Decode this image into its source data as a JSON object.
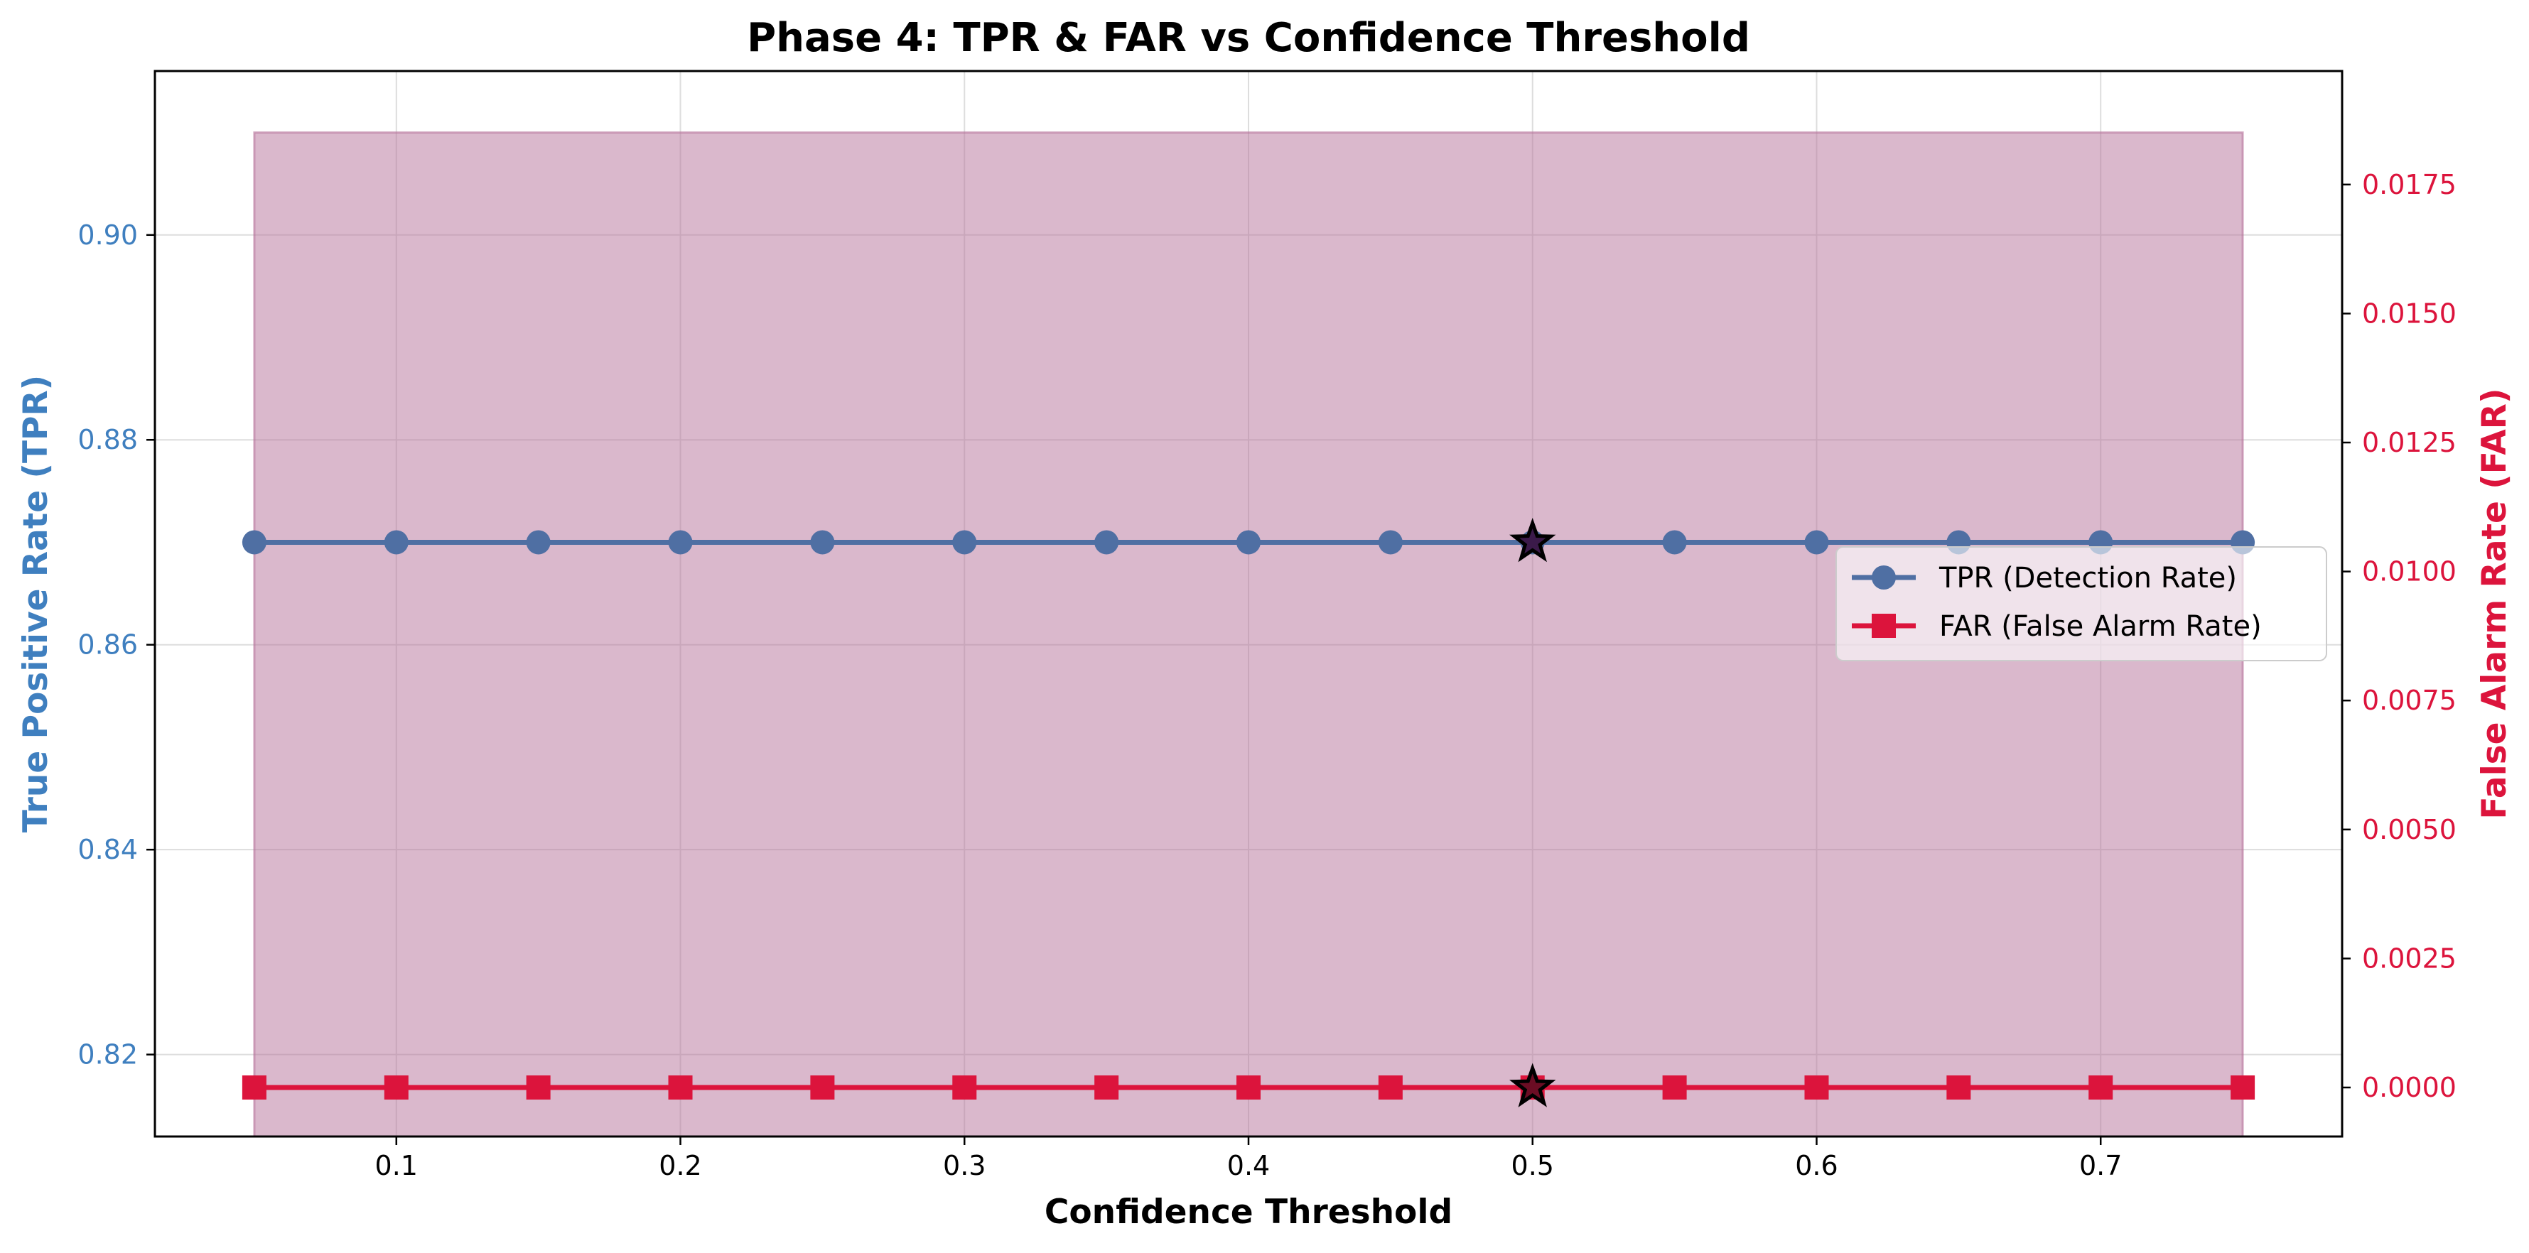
{
  "chart_data": {
    "type": "line",
    "title": "Phase 4: TPR & FAR vs Confidence Threshold",
    "xlabel": "Confidence Threshold",
    "ylabel_left": "True Positive Rate (TPR)",
    "ylabel_right": "False Alarm Rate (FAR)",
    "x": [
      0.05,
      0.1,
      0.15,
      0.2,
      0.25,
      0.3,
      0.35,
      0.4,
      0.45,
      0.5,
      0.55,
      0.6,
      0.65,
      0.7,
      0.75
    ],
    "xlim": [
      0.015,
      0.785
    ],
    "ylim_left": [
      0.812,
      0.916
    ],
    "ylim_right": [
      -0.00095,
      0.0197
    ],
    "x_ticks": [
      "0.1",
      "0.2",
      "0.3",
      "0.4",
      "0.5",
      "0.6",
      "0.7"
    ],
    "y_left_ticks": [
      "0.82",
      "0.84",
      "0.86",
      "0.88",
      "0.90"
    ],
    "y_right_ticks": [
      "0.0000",
      "0.0025",
      "0.0050",
      "0.0075",
      "0.0100",
      "0.0125",
      "0.0150",
      "0.0175"
    ],
    "series": [
      {
        "name": "TPR (Detection Rate)",
        "axis": "left",
        "marker": "circle",
        "color": "#4f6fa3",
        "values": [
          0.87,
          0.87,
          0.87,
          0.87,
          0.87,
          0.87,
          0.87,
          0.87,
          0.87,
          0.87,
          0.87,
          0.87,
          0.87,
          0.87,
          0.87
        ]
      },
      {
        "name": "FAR (False Alarm Rate)",
        "axis": "right",
        "marker": "square",
        "color": "#dc143c",
        "values": [
          0,
          0,
          0,
          0,
          0,
          0,
          0,
          0,
          0,
          0,
          0,
          0,
          0,
          0,
          0
        ]
      }
    ],
    "shaded_region": {
      "x": [
        0.05,
        0.75
      ],
      "y_left": [
        0.812,
        0.91
      ],
      "color": "#b5729a"
    },
    "highlight": {
      "x": 0.5,
      "marker": "star"
    },
    "legend": "center-right",
    "grid": true,
    "colors": {
      "left_axis": "#3f7fbf",
      "right_axis": "#dc143c"
    }
  }
}
